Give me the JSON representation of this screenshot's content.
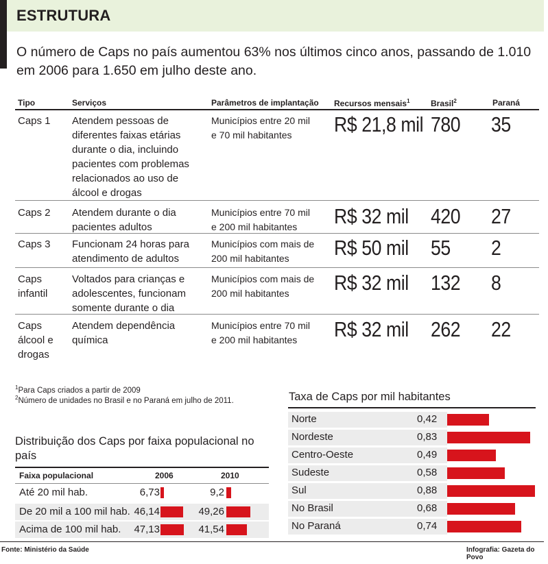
{
  "header": {
    "title": "ESTRUTURA",
    "intro": "O número de Caps no país aumentou 63% nos últimos cinco anos, passando de 1.010 em 2006 para 1.650 em julho deste ano."
  },
  "main_table": {
    "columns": {
      "tipo": "Tipo",
      "servicos": "Serviços",
      "parametros": "Parâmetros de implantação",
      "recursos": "Recursos mensais",
      "recursos_note": "1",
      "brasil": "Brasil",
      "brasil_note": "2",
      "parana": "Paraná"
    },
    "rows": [
      {
        "tipo": [
          "Caps 1"
        ],
        "servicos": [
          "Atendem pessoas de",
          "diferentes faixas etárias",
          "durante o dia, incluindo",
          "pacientes com problemas",
          "relacionados ao uso de",
          "álcool e drogas"
        ],
        "parametros": [
          "Municípios entre 20 mil",
          "e 70 mil habitantes"
        ],
        "recursos": "R$ 21,8 mil",
        "brasil": "780",
        "parana": "35"
      },
      {
        "tipo": [
          "Caps 2"
        ],
        "servicos": [
          "Atendem durante o dia",
          "pacientes adultos"
        ],
        "parametros": [
          "Municípios entre 70 mil",
          "e 200 mil habitantes"
        ],
        "recursos": "R$ 32 mil",
        "brasil": "420",
        "parana": "27"
      },
      {
        "tipo": [
          "Caps 3"
        ],
        "servicos": [
          "Funcionam 24 horas para",
          "atendimento de adultos"
        ],
        "parametros": [
          "Municípios com mais de",
          "200 mil habitantes"
        ],
        "recursos": "R$ 50 mil",
        "brasil": "55",
        "parana": "2"
      },
      {
        "tipo": [
          "Caps",
          "infantil"
        ],
        "servicos": [
          "Voltados para crianças e",
          "adolescentes, funcionam",
          "somente durante o dia"
        ],
        "parametros": [
          "Municípios com mais de",
          "200 mil habitantes"
        ],
        "recursos": "R$ 32 mil",
        "brasil": "132",
        "parana": "8"
      },
      {
        "tipo": [
          "Caps",
          "álcool e",
          "drogas"
        ],
        "servicos": [
          "Atendem dependência",
          "química"
        ],
        "parametros": [
          "Municípios entre 70 mil",
          "e 200 mil habitantes"
        ],
        "recursos": "R$ 32 mil",
        "brasil": "262",
        "parana": "22"
      }
    ]
  },
  "footnotes": [
    {
      "mark": "1",
      "text": "Para Caps criados a partir de 2009"
    },
    {
      "mark": "2",
      "text": "Número de unidades no Brasil e no Paraná em julho de 2011."
    }
  ],
  "colors": {
    "bar": "#d7141c",
    "header_background": "#e9f2dc",
    "row_shading": "#ececec",
    "text": "#231f20"
  },
  "chart_data": [
    {
      "type": "bar",
      "title": "Distribuição dos Caps por faixa populacional no país",
      "category_header": "Faixa populacional",
      "categories": [
        "Até 20 mil hab.",
        "De 20 mil a 100 mil hab.",
        "Acima de 100 mil hab."
      ],
      "series": [
        {
          "name": "2006",
          "values": [
            6.73,
            46.14,
            47.13
          ],
          "labels": [
            "6,73",
            "46,14",
            "47,13"
          ]
        },
        {
          "name": "2010",
          "values": [
            9.2,
            49.26,
            41.54
          ],
          "labels": [
            "9,2",
            "49,26",
            "41,54"
          ]
        }
      ],
      "unit": "%"
    },
    {
      "type": "bar",
      "title": "Taxa de Caps por mil habitantes",
      "categories": [
        "Norte",
        "Nordeste",
        "Centro-Oeste",
        "Sudeste",
        "Sul",
        "No Brasil",
        "No Paraná"
      ],
      "values": [
        0.42,
        0.83,
        0.49,
        0.58,
        0.88,
        0.68,
        0.74
      ],
      "labels": [
        "0,42",
        "0,83",
        "0,49",
        "0,58",
        "0,88",
        "0,68",
        "0,74"
      ]
    }
  ],
  "footer": {
    "source": "Fonte: Ministério da Saúde",
    "credit": "Infografia: Gazeta do Povo"
  }
}
